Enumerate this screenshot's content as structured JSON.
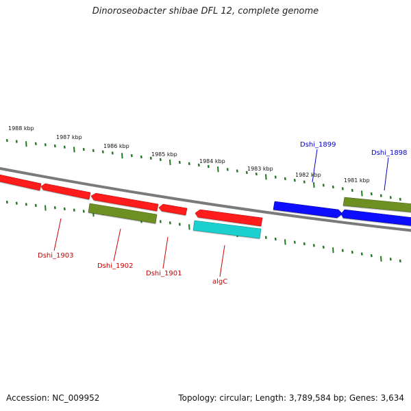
{
  "title": "Dinoroseobacter shibae DFL 12, complete genome",
  "accession": "Accession: NC_009952",
  "summary": "Topology: circular; Length: 3,789,584 bp; Genes: 3,634",
  "colors": {
    "backbone": "#808080",
    "tick": "#1e7a1e",
    "reverse_gene": "#ff0000",
    "forward_gene": "#0000ff",
    "olive_feature": "#6b8e23",
    "cyan_feature": "#00cccc",
    "label_red": "#cc0000",
    "label_blue": "#0000cc"
  },
  "ruler_labels": [
    "1988 kbp",
    "1987 kbp",
    "1986 kbp",
    "1985 kbp",
    "1984 kbp",
    "1983 kbp",
    "1982 kbp",
    "1981 kbp"
  ],
  "gene_labels": {
    "dshi_1903": "Dshi_1903",
    "dshi_1902": "Dshi_1902",
    "dshi_1901": "Dshi_1901",
    "algC": "algC",
    "dshi_1899": "Dshi_1899",
    "dshi_1898": "Dshi_1898"
  }
}
